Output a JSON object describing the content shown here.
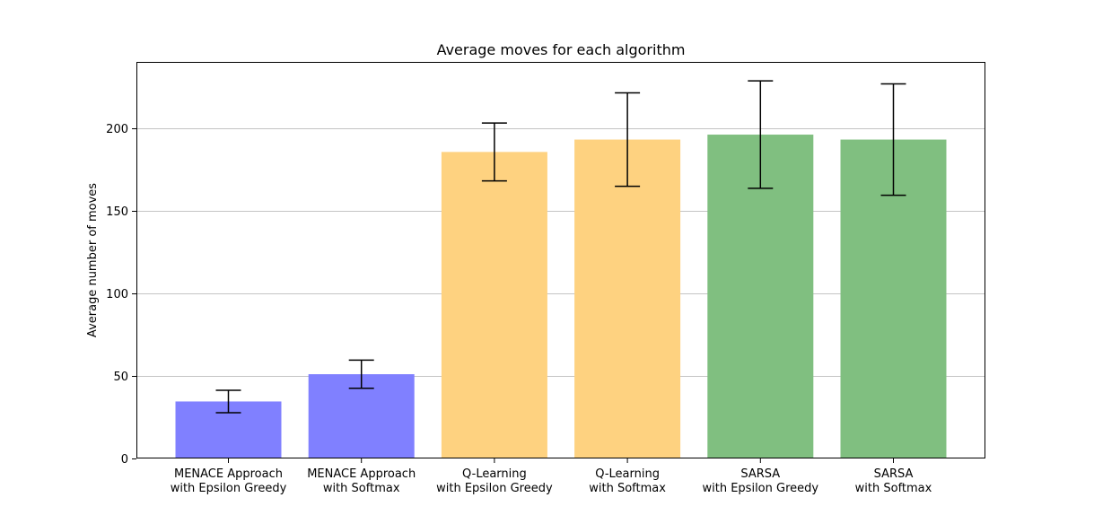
{
  "chart_data": {
    "type": "bar",
    "title": "Average moves for each algorithm",
    "xlabel": "",
    "ylabel": "Average number of moves",
    "ylim": [
      0,
      240
    ],
    "yticks": [
      0,
      50,
      100,
      150,
      200
    ],
    "grid": "y",
    "categories": [
      [
        "MENACE Approach",
        "with Epsilon Greedy"
      ],
      [
        "MENACE Approach",
        "with Softmax"
      ],
      [
        "Q-Learning",
        "with Epsilon Greedy"
      ],
      [
        "Q-Learning",
        "with Softmax"
      ],
      [
        "SARSA",
        "with Epsilon Greedy"
      ],
      [
        "SARSA",
        "with Softmax"
      ]
    ],
    "values": [
      34.5,
      51,
      185.5,
      193,
      196,
      193
    ],
    "errors": [
      6.8,
      8.5,
      17.5,
      28.3,
      32.5,
      33.7
    ],
    "colors": [
      "#8080ff",
      "#8080ff",
      "#fed280",
      "#fed280",
      "#80bf80",
      "#80bf80"
    ]
  }
}
